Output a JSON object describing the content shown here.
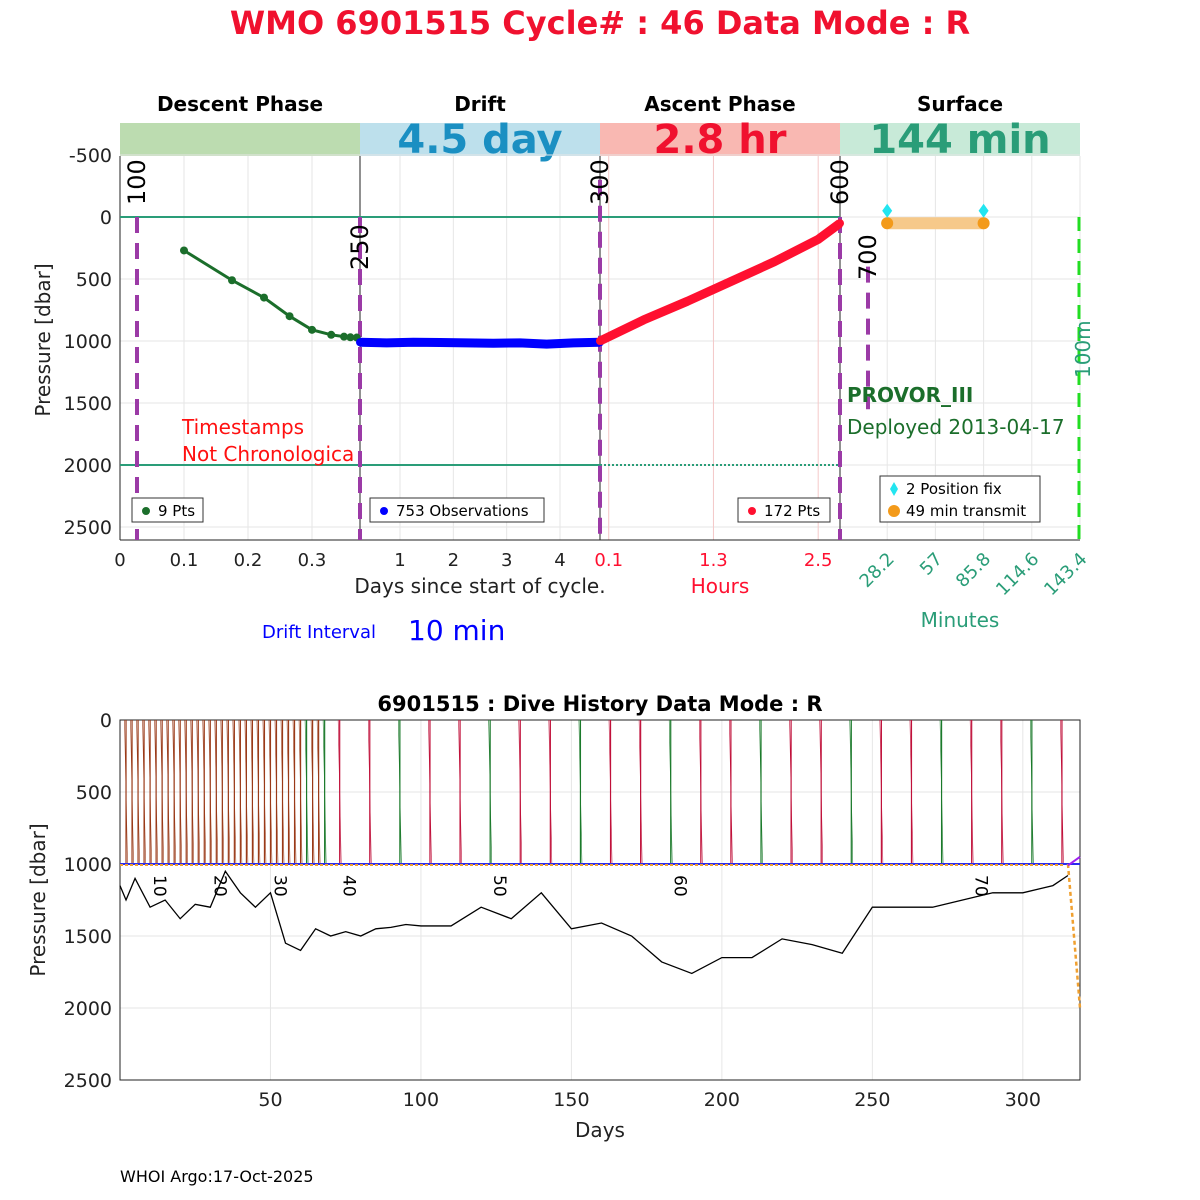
{
  "title": "WMO 6901515   Cycle# : 46   Data Mode : R",
  "colors": {
    "title": "#f0112f",
    "descent": "#1b6e2b",
    "drift": "#0000ff",
    "ascent": "#ff1030",
    "surface_text": "#2a9d78",
    "purple_line": "#9b3aa6",
    "green_dash": "#22dd22",
    "history_black": "#000000",
    "orange": "#f0a030"
  },
  "top_panel": {
    "phases": [
      {
        "name": "Descent Phase",
        "band_color": "#bcdcb0",
        "band_text": ""
      },
      {
        "name": "Drift",
        "band_color": "#bde0ec",
        "band_text": "4.5 day",
        "band_text_color": "#1a8fc2"
      },
      {
        "name": "Ascent Phase",
        "band_color": "#f9b8b2",
        "band_text": "2.8 hr",
        "band_text_color": "#f0112f"
      },
      {
        "name": "Surface",
        "band_color": "#c8ead8",
        "band_text": "144 min",
        "band_text_color": "#2a9d78"
      }
    ],
    "ylabel": "Pressure [dbar]",
    "yticks": [
      -500,
      0,
      500,
      1000,
      1500,
      2000,
      2500
    ],
    "ylim": [
      -750,
      2600
    ],
    "descent_xticks": [
      "0",
      "0.1",
      "0.2",
      "0.3"
    ],
    "drift_xticks": [
      "1",
      "2",
      "3",
      "4"
    ],
    "ascent_xticks": [
      "0.1",
      "1.3",
      "2.5"
    ],
    "surface_xticks": [
      "28.2",
      "57",
      "85.8",
      "114.6",
      "143.4"
    ],
    "xlabel_days": "Days since start of cycle.",
    "xlabel_hours": "Hours",
    "xlabel_minutes": "Minutes",
    "drift_interval_label": "Drift Interval",
    "drift_interval_value": "10 min",
    "vertical_markers": [
      "100",
      "250",
      "300",
      "600",
      "700",
      "100m"
    ],
    "warning_line1": "Timestamps",
    "warning_line2": "Not Chronologica",
    "float_type": "PROVOR_III",
    "deployed": "Deployed 2013-04-17",
    "legend_descent": "9 Pts",
    "legend_drift": "753 Observations",
    "legend_ascent": "172 Pts",
    "legend_surface_fix": "2 Position fix",
    "legend_surface_transmit": "49 min transmit"
  },
  "chart_data": [
    {
      "type": "line",
      "name": "Descent",
      "x_units": "days",
      "x": [
        0.1,
        0.175,
        0.225,
        0.265,
        0.3,
        0.33,
        0.35,
        0.36,
        0.37
      ],
      "y": [
        270,
        510,
        650,
        800,
        910,
        950,
        965,
        970,
        972
      ]
    },
    {
      "type": "line",
      "name": "Drift",
      "x_units": "days",
      "x": [
        0,
        0.5,
        1,
        1.5,
        2,
        2.5,
        3,
        3.5,
        4,
        4.5
      ],
      "y": [
        1010,
        1015,
        1010,
        1012,
        1015,
        1018,
        1015,
        1025,
        1015,
        1010
      ]
    },
    {
      "type": "line",
      "name": "Ascent",
      "x_units": "hours",
      "x": [
        0,
        0.5,
        1.0,
        1.5,
        2.0,
        2.5,
        2.75
      ],
      "y": [
        1000,
        830,
        680,
        520,
        360,
        180,
        50
      ]
    },
    {
      "type": "scatter",
      "name": "Surface",
      "x_units": "minutes",
      "positions_x": [
        28.2,
        85.8
      ],
      "positions_y": [
        -50,
        -50
      ],
      "transmit_x": [
        28.2,
        85.8
      ],
      "transmit_y": [
        50,
        50
      ]
    },
    {
      "type": "line",
      "title": "6901515 : Dive History      Data Mode : R",
      "xlabel": "Days",
      "ylabel": "Pressure [dbar]",
      "xticks": [
        50,
        100,
        150,
        200,
        250,
        300
      ],
      "yticks": [
        0,
        500,
        1000,
        1500,
        2000,
        2500
      ],
      "xlim": [
        0,
        319
      ],
      "ylim": [
        0,
        2500
      ],
      "cycle_labels": [
        {
          "label": "10",
          "day": 10
        },
        {
          "label": "20",
          "day": 30
        },
        {
          "label": "30",
          "day": 50
        },
        {
          "label": "40",
          "day": 73
        },
        {
          "label": "50",
          "day": 123
        },
        {
          "label": "60",
          "day": 183
        },
        {
          "label": "70",
          "day": 283
        }
      ],
      "bottom_depth_days": [
        0,
        2,
        5,
        10,
        15,
        20,
        25,
        30,
        35,
        40,
        45,
        50,
        55,
        60,
        65,
        70,
        75,
        80,
        85,
        90,
        95,
        100,
        110,
        120,
        130,
        140,
        150,
        160,
        170,
        180,
        190,
        200,
        210,
        220,
        230,
        240,
        250,
        260,
        270,
        280,
        290,
        300,
        310,
        315
      ],
      "bottom_depth_values": [
        1150,
        1250,
        1100,
        1300,
        1250,
        1380,
        1280,
        1300,
        1050,
        1200,
        1300,
        1200,
        1550,
        1600,
        1450,
        1500,
        1470,
        1500,
        1450,
        1440,
        1420,
        1430,
        1430,
        1300,
        1380,
        1200,
        1450,
        1410,
        1500,
        1680,
        1760,
        1650,
        1650,
        1520,
        1560,
        1620,
        1300,
        1300,
        1300,
        1250,
        1200,
        1200,
        1150,
        1080
      ],
      "drift_pressure": 1000,
      "cycle_days_dense_step": 2,
      "cycle_days_sparse_step": 10
    }
  ],
  "footer": "WHOI Argo:17-Oct-2025"
}
